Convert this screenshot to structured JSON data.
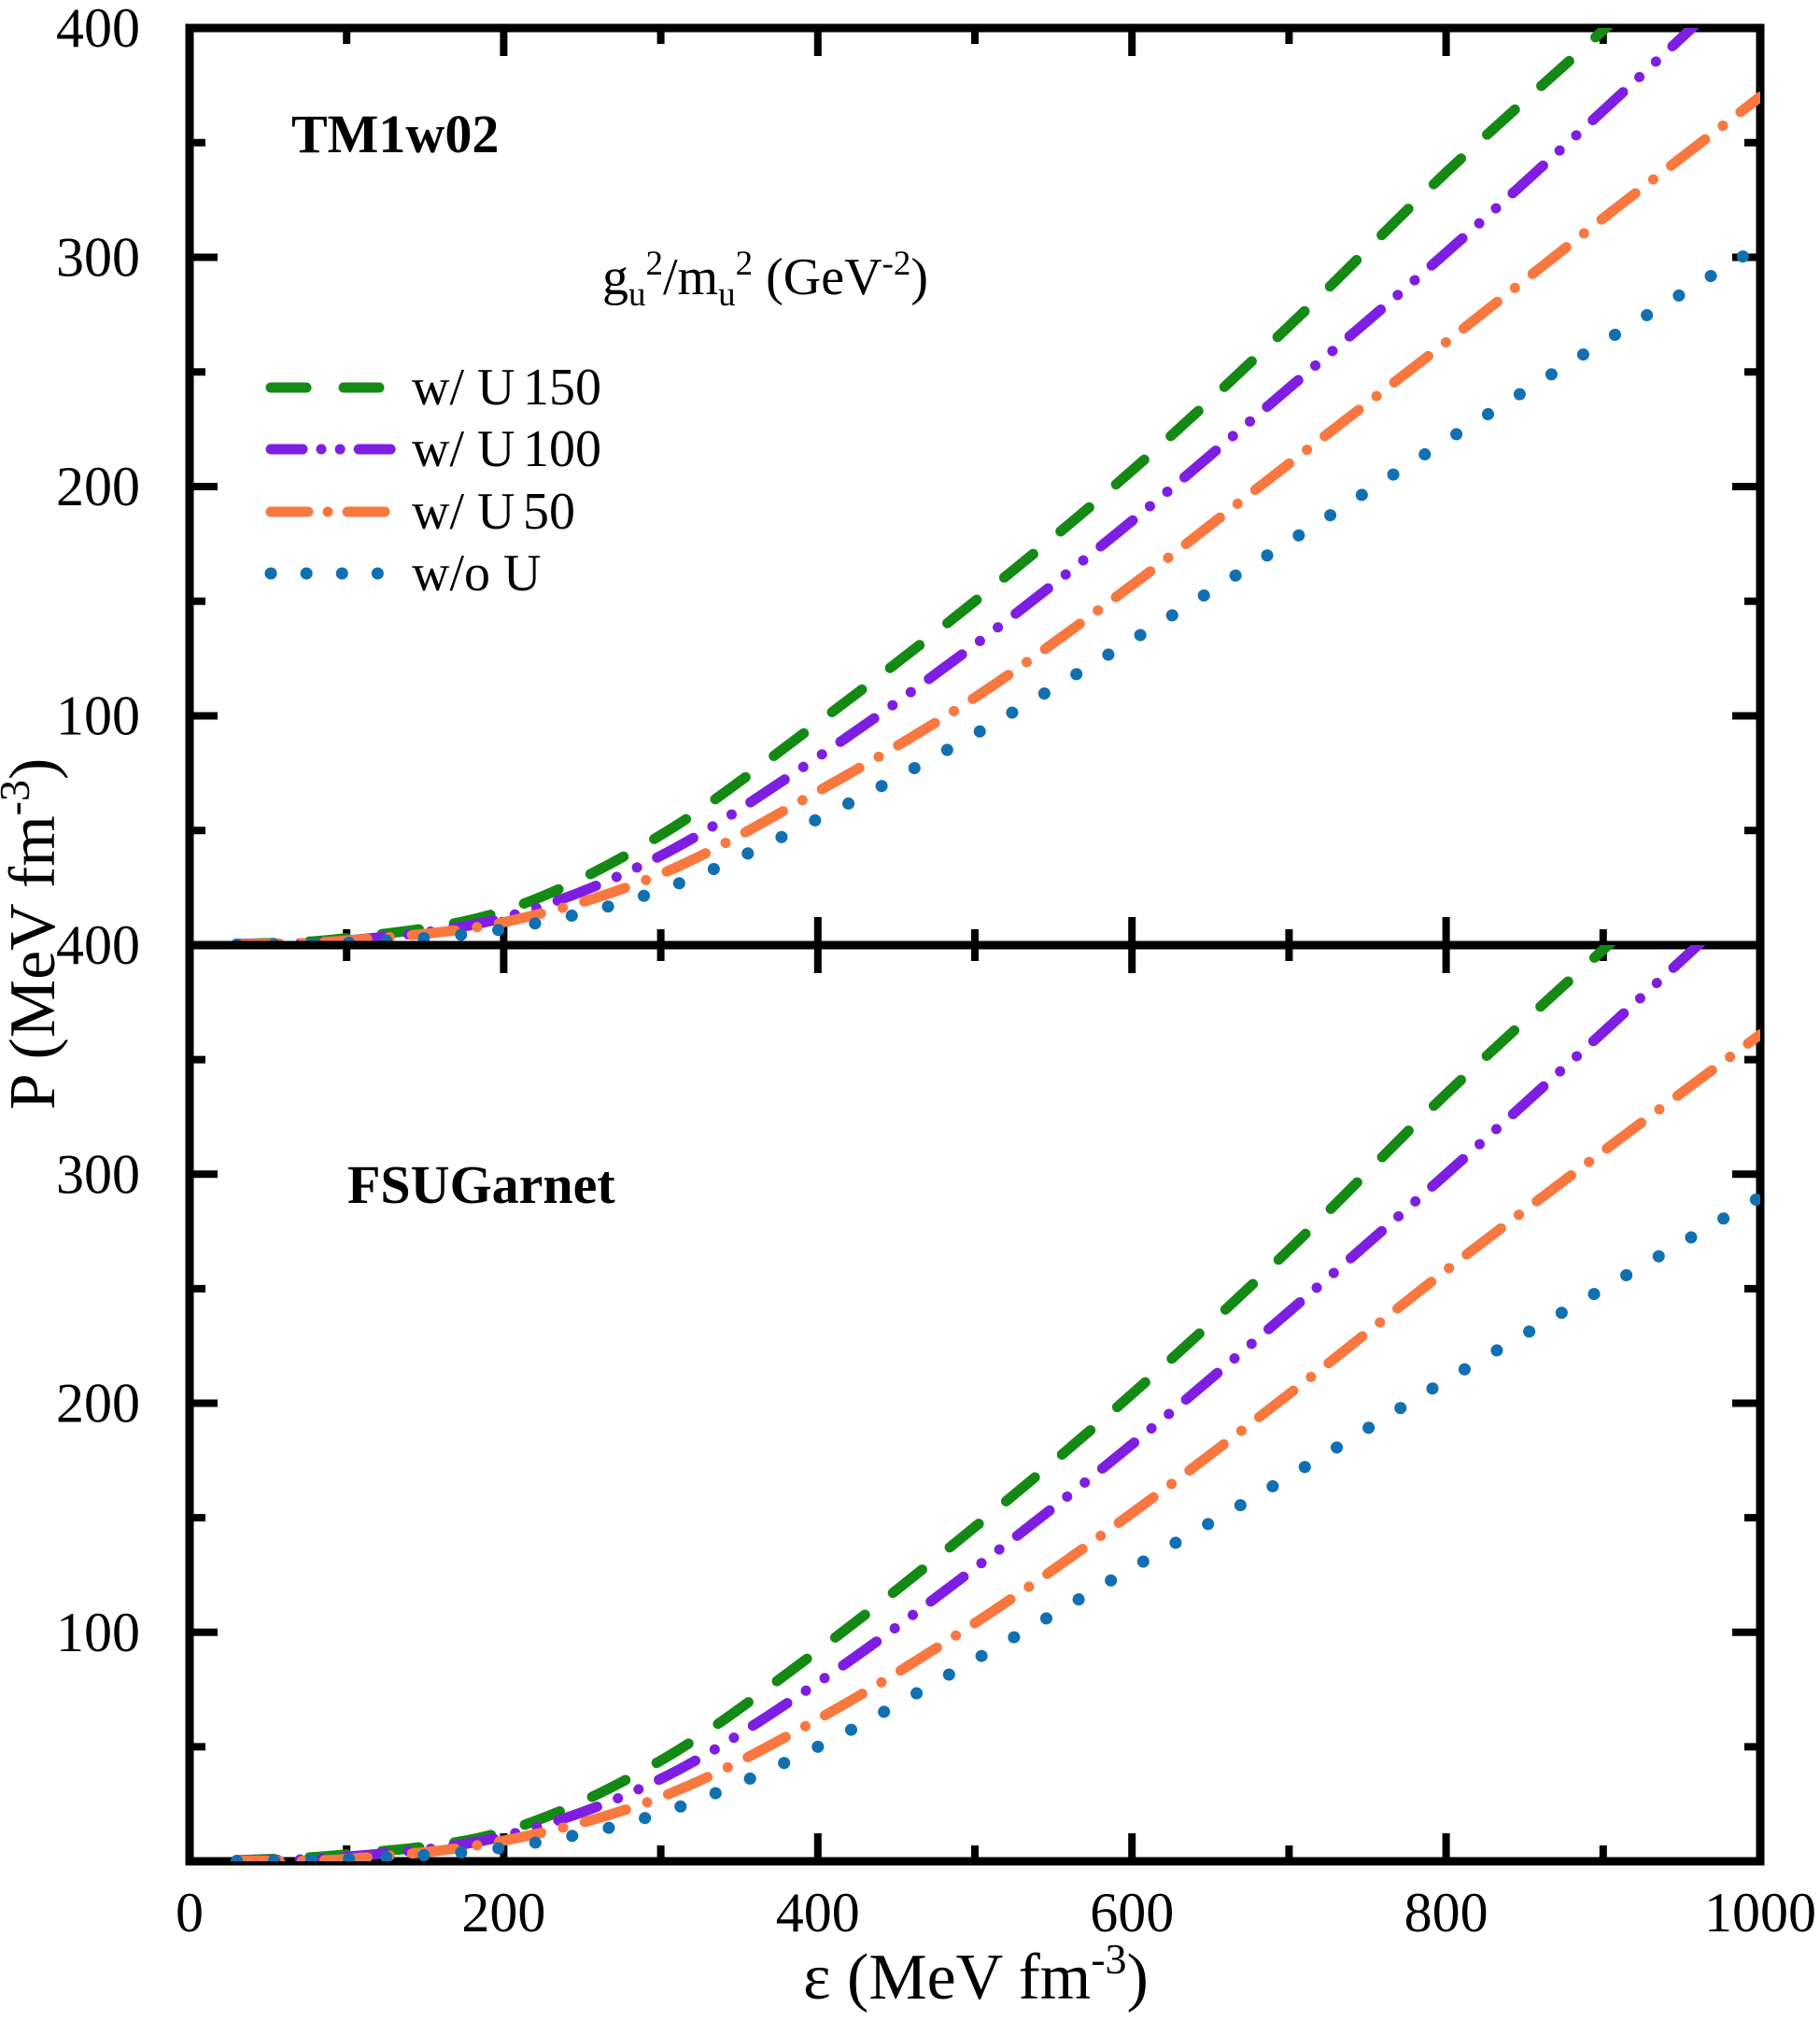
{
  "figure": {
    "background": "#ffffff",
    "axis_color": "#000000"
  },
  "axis_labels": {
    "x_parts": [
      {
        "t": "ε (MeV fm"
      },
      {
        "t": "-3",
        "sup": true
      },
      {
        "t": ")"
      }
    ],
    "y_parts": [
      {
        "t": "P (MeV fm"
      },
      {
        "t": "-3",
        "sup": true
      },
      {
        "t": ")"
      }
    ]
  },
  "legend": {
    "title_parts": [
      {
        "t": "g"
      },
      {
        "t": "u",
        "sub": true
      },
      {
        "t": "2",
        "sup": true
      },
      {
        "t": "/m"
      },
      {
        "t": "u",
        "sub": true
      },
      {
        "t": "2",
        "sup": true
      },
      {
        "t": " (GeV"
      },
      {
        "t": "-2",
        "sup": true
      },
      {
        "t": ")"
      }
    ],
    "entries": [
      {
        "label": "w/ U",
        "value": "150",
        "style": "dashed",
        "color": "#148A14"
      },
      {
        "label": "w/ U",
        "value": "100",
        "style": "dash-dot-dot",
        "color": "#7E1EE3"
      },
      {
        "label": "w/ U",
        "value": "50",
        "style": "dash-dot",
        "color": "#F97840"
      },
      {
        "label": "w/o U",
        "value": "",
        "style": "dotted",
        "color": "#1070B2"
      }
    ]
  },
  "chart_data": [
    {
      "type": "line",
      "panel": "top",
      "title": "TM1w02",
      "xlim": [
        0,
        1000
      ],
      "ylim": [
        0,
        400
      ],
      "x_major_ticks": [
        0,
        200,
        400,
        600,
        800,
        1000
      ],
      "x_minor_ticks": [
        100,
        300,
        500,
        700,
        900
      ],
      "y_major_ticks": [
        100,
        200,
        300,
        400
      ],
      "y_minor_ticks": [
        50,
        150,
        250,
        350
      ],
      "y_tick_labels": [
        "100",
        "200",
        "300",
        "400"
      ],
      "show_x_tick_labels": false,
      "x": [
        30,
        100,
        200,
        300,
        400,
        500,
        600,
        700,
        800,
        900,
        1000
      ],
      "series": [
        {
          "name": "w/ U 150",
          "style": "dashed",
          "color": "#148A14",
          "values": [
            0.5,
            3,
            15,
            48,
            97,
            150,
            207,
            270,
            337,
            399,
            462
          ]
        },
        {
          "name": "w/ U 100",
          "style": "dash-dot-dot",
          "color": "#7E1EE3",
          "values": [
            0.5,
            2,
            12,
            39,
            82,
            131,
            185,
            243,
            302,
            364,
            428
          ]
        },
        {
          "name": "w/ U 50",
          "style": "dash-dot",
          "color": "#F97840",
          "values": [
            0.3,
            2,
            10,
            31,
            67,
            108,
            157,
            210,
            263,
            317,
            370
          ]
        },
        {
          "name": "w/o U",
          "style": "dotted",
          "color": "#1070B2",
          "values": [
            0.2,
            1,
            7,
            24,
            55,
            92,
            133,
            176,
            220,
            263,
            305
          ]
        }
      ]
    },
    {
      "type": "line",
      "panel": "bottom",
      "title": "FSUGarnet",
      "xlim": [
        0,
        1000
      ],
      "ylim": [
        0,
        400
      ],
      "x_major_ticks": [
        0,
        200,
        400,
        600,
        800,
        1000
      ],
      "x_minor_ticks": [
        100,
        300,
        500,
        700,
        900
      ],
      "y_major_ticks": [
        100,
        200,
        300,
        400
      ],
      "y_minor_ticks": [
        50,
        150,
        250,
        350
      ],
      "y_tick_labels": [
        "100",
        "200",
        "300",
        "400"
      ],
      "show_x_tick_labels": true,
      "x_tick_labels": [
        "0",
        "200",
        "400",
        "600",
        "800",
        "1000"
      ],
      "x": [
        30,
        100,
        200,
        300,
        400,
        500,
        600,
        700,
        800,
        900,
        1000
      ],
      "series": [
        {
          "name": "w/ U 150",
          "style": "dashed",
          "color": "#148A14",
          "values": [
            0.5,
            3,
            13,
            44,
            92,
            146,
            204,
            267,
            335,
            398,
            460
          ]
        },
        {
          "name": "w/ U 100",
          "style": "dash-dot-dot",
          "color": "#7E1EE3",
          "values": [
            0.4,
            2,
            11,
            36,
            78,
            128,
            182,
            240,
            300,
            362,
            425
          ]
        },
        {
          "name": "w/ U 50",
          "style": "dash-dot",
          "color": "#F97840",
          "values": [
            0.3,
            1,
            9,
            28,
            62,
            104,
            152,
            204,
            258,
            310,
            361
          ]
        },
        {
          "name": "w/o U",
          "style": "dotted",
          "color": "#1070B2",
          "values": [
            0.2,
            1,
            6,
            21,
            50,
            88,
            128,
            168,
            210,
            250,
            290
          ]
        }
      ]
    }
  ]
}
